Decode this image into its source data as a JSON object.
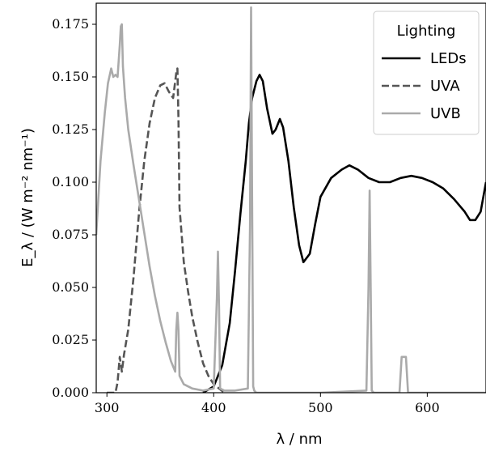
{
  "chart_data": {
    "type": "line",
    "xlabel": "λ / nm",
    "ylabel": "E_λ / (W m⁻² nm⁻¹)",
    "xlim": [
      290,
      655
    ],
    "ylim": [
      0,
      0.185
    ],
    "xticks": [
      300,
      400,
      500,
      600
    ],
    "yticks": [
      0.0,
      0.025,
      0.05,
      0.075,
      0.1,
      0.125,
      0.15,
      0.175
    ],
    "ytick_labels": [
      "0.000",
      "0.025",
      "0.050",
      "0.075",
      "0.100",
      "0.125",
      "0.150",
      "0.175"
    ],
    "xtick_labels": [
      "300",
      "400",
      "500",
      "600"
    ],
    "grid": false,
    "legend": {
      "title": "Lighting",
      "placement": "top-right"
    },
    "series": [
      {
        "name": "LEDs",
        "color": "#000000",
        "style": "solid",
        "x": [
          390,
          400,
          408,
          415,
          420,
          425,
          430,
          433,
          436,
          440,
          443,
          446,
          450,
          455,
          458,
          462,
          465,
          470,
          475,
          480,
          484,
          490,
          495,
          500,
          510,
          520,
          527,
          535,
          545,
          555,
          565,
          575,
          585,
          595,
          605,
          615,
          625,
          635,
          640,
          645,
          650,
          655
        ],
        "y": [
          0.0,
          0.003,
          0.013,
          0.033,
          0.058,
          0.085,
          0.11,
          0.128,
          0.14,
          0.148,
          0.151,
          0.148,
          0.135,
          0.123,
          0.125,
          0.13,
          0.126,
          0.11,
          0.088,
          0.07,
          0.062,
          0.066,
          0.08,
          0.093,
          0.102,
          0.106,
          0.108,
          0.106,
          0.102,
          0.1,
          0.1,
          0.102,
          0.103,
          0.102,
          0.1,
          0.097,
          0.092,
          0.086,
          0.082,
          0.082,
          0.086,
          0.1
        ]
      },
      {
        "name": "UVA",
        "color": "#555555",
        "style": "dashed",
        "x": [
          300,
          305,
          308,
          310,
          312,
          314,
          316,
          320,
          325,
          330,
          335,
          340,
          345,
          350,
          354,
          358,
          362,
          365,
          366,
          367,
          368,
          372,
          376,
          380,
          385,
          390,
          395,
          400,
          405,
          410
        ],
        "y": [
          0.0,
          0.0,
          0.0,
          0.005,
          0.017,
          0.01,
          0.018,
          0.03,
          0.055,
          0.085,
          0.11,
          0.128,
          0.14,
          0.146,
          0.147,
          0.143,
          0.14,
          0.152,
          0.154,
          0.13,
          0.088,
          0.062,
          0.048,
          0.036,
          0.024,
          0.014,
          0.008,
          0.004,
          0.002,
          0.0
        ]
      },
      {
        "name": "UVB",
        "color": "#aaaaaa",
        "style": "solid",
        "x": [
          290,
          294,
          298,
          301,
          304,
          306,
          308,
          310,
          312,
          313,
          314,
          315,
          317,
          320,
          325,
          330,
          335,
          340,
          345,
          350,
          355,
          360,
          364,
          365,
          366,
          367,
          368,
          372,
          380,
          390,
          400,
          403,
          404,
          405,
          406,
          410,
          420,
          432,
          434,
          435,
          436,
          437,
          438,
          440,
          500,
          543,
          545,
          546,
          547,
          548,
          550,
          574,
          576,
          578,
          580,
          582,
          590,
          600,
          655
        ],
        "y": [
          0.075,
          0.11,
          0.133,
          0.147,
          0.154,
          0.15,
          0.151,
          0.15,
          0.165,
          0.174,
          0.175,
          0.155,
          0.14,
          0.125,
          0.108,
          0.092,
          0.076,
          0.06,
          0.046,
          0.034,
          0.024,
          0.015,
          0.01,
          0.03,
          0.038,
          0.03,
          0.008,
          0.004,
          0.002,
          0.001,
          0.002,
          0.045,
          0.067,
          0.04,
          0.002,
          0.001,
          0.001,
          0.002,
          0.08,
          0.183,
          0.09,
          0.003,
          0.001,
          0.0,
          0.0,
          0.001,
          0.05,
          0.096,
          0.05,
          0.001,
          0.0,
          0.0,
          0.017,
          0.017,
          0.017,
          0.0,
          0.0,
          0.0,
          0.0
        ]
      }
    ]
  }
}
